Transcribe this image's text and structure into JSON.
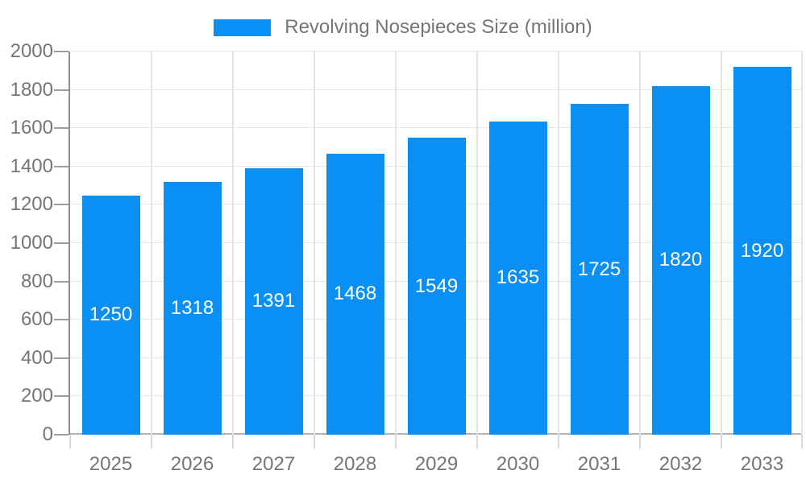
{
  "legend": {
    "label": "Revolving Nosepieces Size (million)"
  },
  "chart_data": {
    "type": "bar",
    "title": "",
    "xlabel": "",
    "ylabel": "",
    "categories": [
      "2025",
      "2026",
      "2027",
      "2028",
      "2029",
      "2030",
      "2031",
      "2032",
      "2033"
    ],
    "series": [
      {
        "name": "Revolving Nosepieces Size (million)",
        "values": [
          1250,
          1318,
          1391,
          1468,
          1549,
          1635,
          1725,
          1820,
          1920
        ]
      }
    ],
    "value_labels_inside_bars": true,
    "ylim": [
      0,
      2000
    ],
    "ytick_step": 200,
    "y_ticks": [
      0,
      200,
      400,
      600,
      800,
      1000,
      1200,
      1400,
      1600,
      1800,
      2000
    ],
    "grid": true,
    "legend_position": "top-center",
    "colors": {
      "bar": "#0a90f4",
      "bar_label_text": "#ffffff",
      "axis_text": "#757575",
      "gridline": "#e6e6e6",
      "baseline": "#b3b3b3",
      "axis_line": "#8f8f8f"
    }
  }
}
